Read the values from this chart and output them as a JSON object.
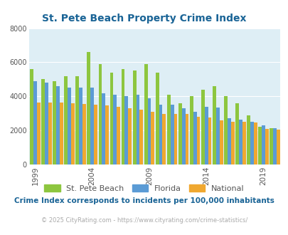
{
  "title": "St. Pete Beach Property Crime Index",
  "title_color": "#1a6496",
  "years": [
    1999,
    2000,
    2001,
    2002,
    2003,
    2004,
    2005,
    2006,
    2007,
    2008,
    2009,
    2010,
    2011,
    2012,
    2013,
    2014,
    2015,
    2016,
    2017,
    2018,
    2019,
    2020
  ],
  "st_pete": [
    5600,
    5000,
    4900,
    5200,
    5200,
    6600,
    5900,
    5400,
    5600,
    5500,
    5900,
    5400,
    4100,
    3600,
    4000,
    4400,
    4600,
    4000,
    3600,
    2900,
    2200,
    2150
  ],
  "florida": [
    4900,
    4800,
    4600,
    4500,
    4500,
    4500,
    4200,
    4100,
    4000,
    4100,
    3900,
    3500,
    3500,
    3300,
    3100,
    3400,
    3350,
    2700,
    2650,
    2500,
    2300,
    2150
  ],
  "national": [
    3650,
    3650,
    3650,
    3600,
    3550,
    3500,
    3450,
    3400,
    3300,
    3200,
    3100,
    2950,
    2950,
    2950,
    2800,
    2750,
    2600,
    2500,
    2500,
    2450,
    2100,
    2050
  ],
  "color_st_pete": "#8dc63f",
  "color_florida": "#5b9bd5",
  "color_national": "#f0a830",
  "bg_color": "#deeef5",
  "ylim": [
    0,
    8000
  ],
  "yticks": [
    0,
    2000,
    4000,
    6000,
    8000
  ],
  "grid_color": "#ffffff",
  "subtitle": "Crime Index corresponds to incidents per 100,000 inhabitants",
  "footer": "© 2025 CityRating.com - https://www.cityrating.com/crime-statistics/",
  "subtitle_color": "#1a6496",
  "footer_color": "#aaaaaa",
  "xlabel_ticks": [
    1999,
    2004,
    2009,
    2014,
    2019
  ]
}
